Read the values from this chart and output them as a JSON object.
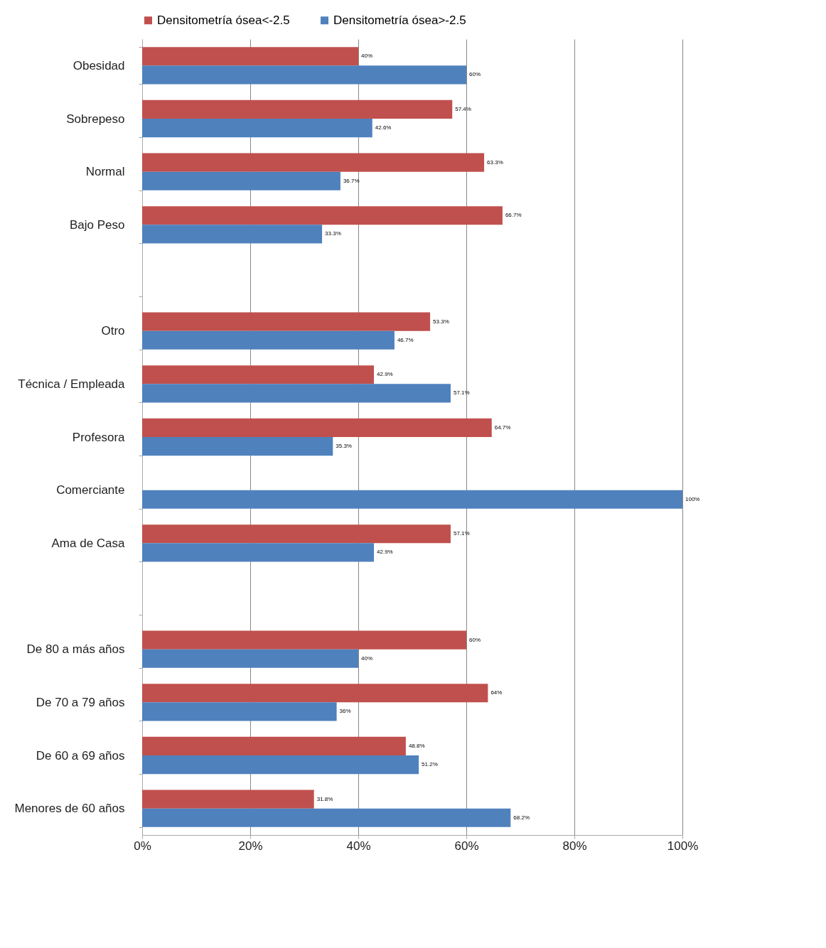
{
  "chart_data": {
    "type": "bar",
    "orientation": "horizontal",
    "categories": [
      "Obesidad",
      "Sobrepeso",
      "Normal",
      "Bajo Peso",
      null,
      "Otro",
      "Técnica / Empleada",
      "Profesora",
      "Comerciante",
      "Ama de Casa",
      null,
      "De 80 a más años",
      "De 70 a 79 años",
      "De 60 a 69 años",
      "Menores de 60 años"
    ],
    "series": [
      {
        "name": "Densitometría ósea<-2.5",
        "color": "#c0504d",
        "values": [
          40,
          57.4,
          63.3,
          66.7,
          null,
          53.3,
          42.9,
          64.7,
          0,
          57.1,
          null,
          60,
          64,
          48.8,
          31.8
        ],
        "value_labels": [
          "40%",
          "57.4%",
          "63.3%",
          "66.7%",
          null,
          "53.3%",
          "42.9%",
          "64.7%",
          null,
          "57.1%",
          null,
          "60%",
          "64%",
          "48.8%",
          "31.8%"
        ]
      },
      {
        "name": "Densitometría ósea>-2.5",
        "color": "#4f81bd",
        "values": [
          60,
          42.6,
          36.7,
          33.3,
          null,
          46.7,
          57.1,
          35.3,
          100,
          42.9,
          null,
          40,
          36,
          51.2,
          68.2
        ],
        "value_labels": [
          "60%",
          "42.6%",
          "36.7%",
          "33.3%",
          null,
          "46.7%",
          "57.1%",
          "35.3%",
          "100%",
          "42.9%",
          null,
          "40%",
          "36%",
          "51.2%",
          "68.2%"
        ]
      }
    ],
    "xlim": [
      0,
      100
    ],
    "xticks": [
      {
        "value": 0,
        "label": "0%"
      },
      {
        "value": 20,
        "label": "20%"
      },
      {
        "value": 40,
        "label": "40%"
      },
      {
        "value": 60,
        "label": "60%"
      },
      {
        "value": 80,
        "label": "80%"
      },
      {
        "value": 100,
        "label": "100%"
      }
    ],
    "grid": "x",
    "legend": "top"
  }
}
